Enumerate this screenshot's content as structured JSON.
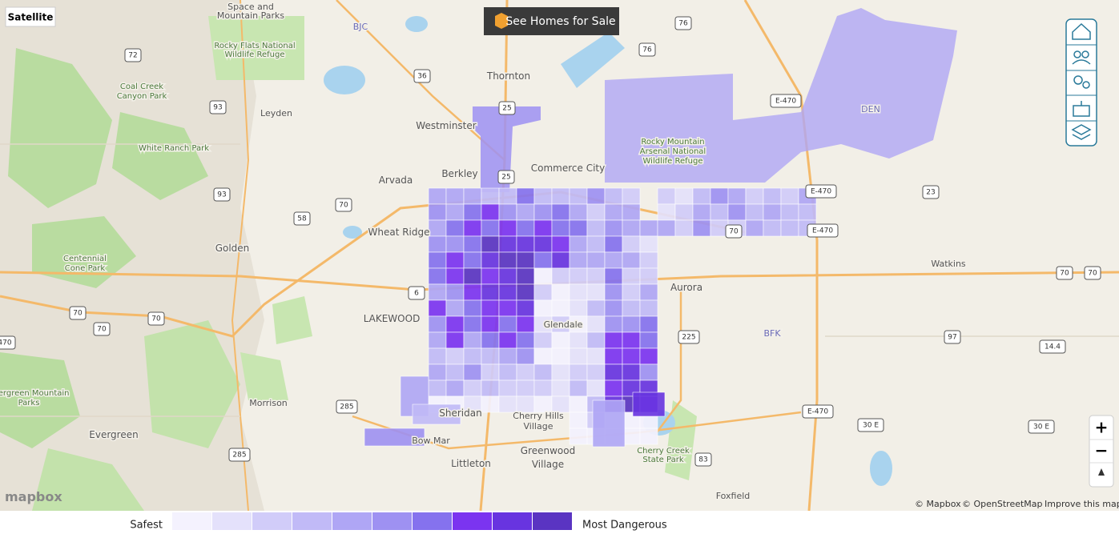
{
  "controls": {
    "satellite": "Satellite",
    "homes": "See Homes for Sale",
    "zoom_in": "+",
    "zoom_out": "−"
  },
  "places": [
    "Thornton",
    "Westminster",
    "Commerce City",
    "Arvada",
    "Berkley",
    "Wheat Ridge",
    "Golden",
    "Aurora",
    "LAKEWOOD",
    "Sheridan",
    "Cherry Hills",
    "Village",
    "Greenwood",
    "Village",
    "Littleton",
    "Evergreen",
    "Morrison",
    "Leyden",
    "Watkins",
    "Foxfield",
    "Cherry Creek",
    "State Park",
    "Rocky Flats National",
    "Wildlife Refuge",
    "Coal Creek",
    "Canyon Park",
    "White Ranch Park",
    "Centennial",
    "Cone Park",
    "Rocky Mountain",
    "Arsenal National",
    "Wildlife Refuge",
    "Glendale",
    "DEN",
    "BJC",
    "BFK",
    "Space and",
    "Mountain Parks",
    "Bow Mar",
    "Evergreen Mountain",
    "Parks"
  ],
  "shields": [
    "72",
    "93",
    "93",
    "58",
    "70",
    "70",
    "70",
    "70",
    "36",
    "76",
    "76",
    "E-470",
    "E-470",
    "E-470",
    "E-470",
    "23",
    "70",
    "70",
    "70",
    "225",
    "285",
    "285",
    "97",
    "14.4",
    "30 E",
    "30 E",
    "83",
    "6",
    "470",
    "25",
    "25"
  ],
  "legend": {
    "low": "Safest",
    "high": "Most Dangerous",
    "colors": [
      "#f4f2fe",
      "#e4e1fb",
      "#d1ccf9",
      "#c1baf7",
      "#afa6f5",
      "#9e91f2",
      "#8572ee",
      "#7b34f0",
      "#6834e0",
      "#5a34c2"
    ]
  },
  "attribution": {
    "logo": "mapbox",
    "mapbox": "© Mapbox",
    "osm": "© OpenStreetMap",
    "improve": "Improve this map"
  }
}
